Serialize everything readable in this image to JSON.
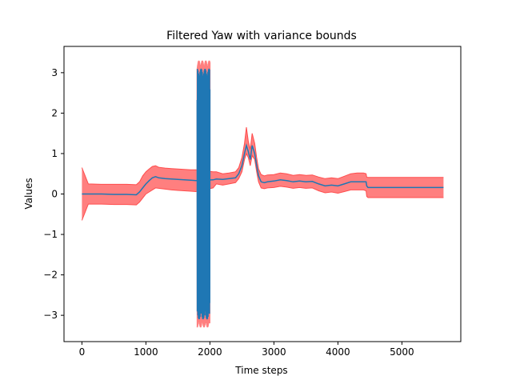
{
  "chart_data": {
    "type": "line",
    "title": "Filtered Yaw with variance bounds",
    "xlabel": "Time steps",
    "ylabel": "Values",
    "xlim": [
      -280,
      5920
    ],
    "ylim": [
      -3.65,
      3.65
    ],
    "xticks": [
      0,
      1000,
      2000,
      3000,
      4000,
      5000
    ],
    "yticks": [
      -3,
      -2,
      -1,
      0,
      1,
      2,
      3
    ],
    "grid": false,
    "legend": "none",
    "colors": {
      "line": "#1f77b4",
      "band_fill": "#ff7f7f",
      "band_edge": "#ff4d4d"
    },
    "series": [
      {
        "x": [
          0,
          100,
          300,
          500,
          700,
          850,
          900,
          950,
          1000,
          1050,
          1100,
          1150,
          1200,
          1300,
          1400,
          1500,
          1600,
          1700,
          1780,
          2050,
          2100,
          2200,
          2300,
          2400,
          2450,
          2500,
          2540,
          2570,
          2600,
          2630,
          2660,
          2700,
          2730,
          2760,
          2800,
          2850,
          2900,
          3000,
          3100,
          3200,
          3300,
          3400,
          3500,
          3600,
          3700,
          3800,
          3900,
          4000,
          4100,
          4200,
          4300,
          4400,
          4440,
          4450,
          4470,
          4600,
          5000,
          5400,
          5650
        ],
        "y": [
          0.0,
          0.0,
          0.0,
          -0.01,
          -0.01,
          -0.02,
          0.05,
          0.15,
          0.25,
          0.33,
          0.4,
          0.43,
          0.4,
          0.38,
          0.37,
          0.36,
          0.35,
          0.34,
          0.33,
          0.35,
          0.37,
          0.36,
          0.38,
          0.4,
          0.5,
          0.7,
          1.0,
          1.2,
          1.05,
          0.85,
          1.2,
          1.0,
          0.7,
          0.45,
          0.3,
          0.28,
          0.3,
          0.32,
          0.35,
          0.33,
          0.3,
          0.32,
          0.3,
          0.31,
          0.25,
          0.2,
          0.22,
          0.2,
          0.25,
          0.3,
          0.3,
          0.3,
          0.3,
          0.2,
          0.16,
          0.16,
          0.16,
          0.16,
          0.16
        ],
        "lower": [
          -0.65,
          -0.25,
          -0.25,
          -0.26,
          -0.26,
          -0.27,
          -0.2,
          -0.1,
          0.0,
          0.05,
          0.1,
          0.15,
          0.14,
          0.12,
          0.1,
          0.09,
          0.08,
          0.07,
          0.06,
          0.15,
          0.25,
          0.22,
          0.25,
          0.28,
          0.38,
          0.55,
          0.85,
          1.0,
          0.9,
          0.7,
          0.95,
          0.85,
          0.55,
          0.3,
          0.15,
          0.13,
          0.15,
          0.16,
          0.19,
          0.17,
          0.14,
          0.16,
          0.14,
          0.15,
          0.08,
          0.03,
          0.05,
          0.02,
          0.06,
          0.1,
          0.1,
          0.1,
          0.08,
          -0.06,
          -0.09,
          -0.09,
          -0.09,
          -0.09,
          -0.09
        ],
        "upper": [
          0.65,
          0.25,
          0.24,
          0.24,
          0.24,
          0.23,
          0.3,
          0.45,
          0.55,
          0.62,
          0.68,
          0.7,
          0.66,
          0.64,
          0.63,
          0.62,
          0.61,
          0.6,
          0.6,
          0.55,
          0.55,
          0.5,
          0.52,
          0.55,
          0.65,
          0.9,
          1.25,
          1.65,
          1.3,
          1.1,
          1.5,
          1.25,
          0.9,
          0.62,
          0.48,
          0.45,
          0.47,
          0.48,
          0.52,
          0.5,
          0.46,
          0.48,
          0.46,
          0.47,
          0.42,
          0.38,
          0.4,
          0.38,
          0.44,
          0.5,
          0.52,
          0.52,
          0.5,
          0.42,
          0.41,
          0.41,
          0.41,
          0.41,
          0.41
        ]
      }
    ],
    "oscillation_region": {
      "x_start": 1800,
      "x_end": 2000,
      "amplitude": 3.1,
      "band_amplitude": 3.3
    }
  }
}
